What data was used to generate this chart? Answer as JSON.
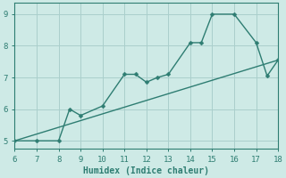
{
  "xlabel": "Humidex (Indice chaleur)",
  "bg_color": "#ceeae6",
  "grid_color": "#aacfcc",
  "line_color": "#2e7d72",
  "x_jagged": [
    6,
    7,
    8,
    8.5,
    9,
    10,
    11,
    11.5,
    12,
    12.5,
    13,
    14,
    14.5,
    15,
    16,
    17,
    17.5,
    18
  ],
  "y_jagged": [
    5.0,
    5.0,
    5.0,
    6.0,
    5.8,
    6.1,
    7.1,
    7.1,
    6.85,
    7.0,
    7.1,
    8.1,
    8.1,
    9.0,
    9.0,
    8.1,
    7.05,
    7.55
  ],
  "x_markers": [
    6,
    7,
    8,
    8.5,
    9,
    10,
    11,
    11.5,
    12,
    12.5,
    13,
    14,
    14.5,
    15,
    16,
    17,
    17.5,
    18
  ],
  "y_markers": [
    5.0,
    5.0,
    5.0,
    6.0,
    5.8,
    6.1,
    7.1,
    7.1,
    6.85,
    7.0,
    7.1,
    8.1,
    8.1,
    9.0,
    9.0,
    8.1,
    7.05,
    7.55
  ],
  "trend_x": [
    6,
    18
  ],
  "trend_y": [
    5.0,
    7.55
  ],
  "xlim": [
    6,
    18
  ],
  "ylim": [
    4.75,
    9.35
  ],
  "xticks": [
    6,
    7,
    8,
    9,
    10,
    11,
    12,
    13,
    14,
    15,
    16,
    17,
    18
  ],
  "yticks": [
    5,
    6,
    7,
    8,
    9
  ],
  "marker_size": 2.5,
  "line_width": 1.0,
  "tick_fontsize": 6.5,
  "xlabel_fontsize": 7.0
}
